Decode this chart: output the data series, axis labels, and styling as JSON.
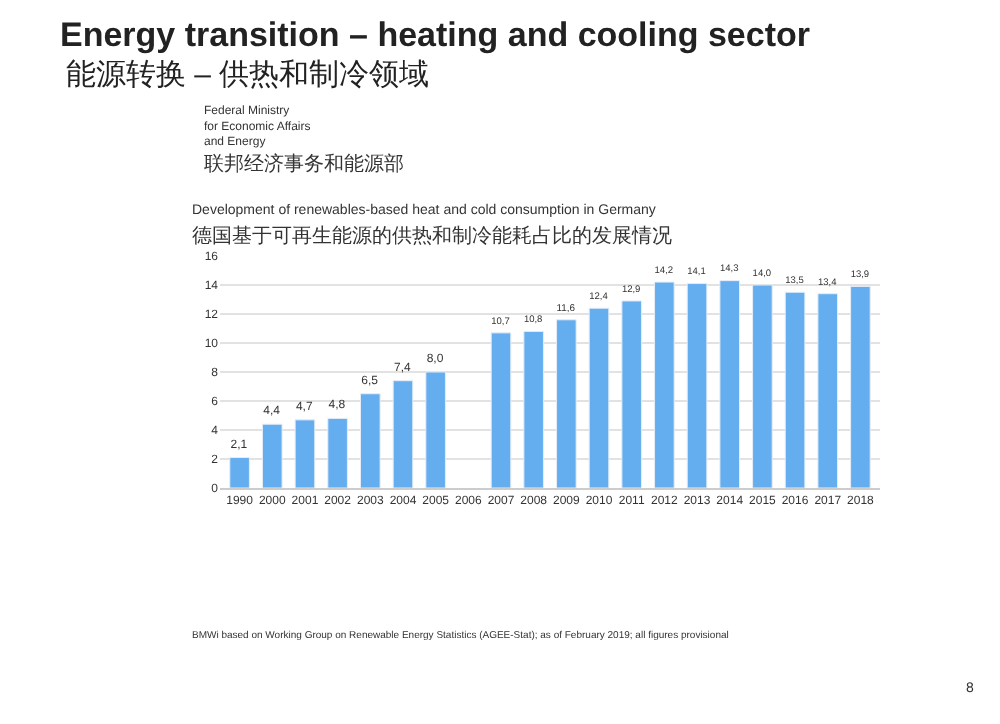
{
  "chart_data": {
    "type": "bar",
    "title": "Energy transition – heating and cooling sector",
    "subtitle": "能源转换 – 供热和制冷领域",
    "annotations": [
      "Federal Ministry\nfor Economic Affairs\nand Energy",
      "联邦经济事务和能源部",
      "Development of renewables-based heat and cold consumption in Germany",
      "德国基于可再生能源的供热和制冷能耗占比的发展情况",
      "BMWi based on Working Group on Renewable Energy Statistics (AGEE-Stat); as of February 2019; all figures provisional",
      "8"
    ],
    "categories": [
      "1990",
      "2000",
      "2001",
      "2002",
      "2003",
      "2004",
      "2005",
      "2006",
      "2007",
      "2008",
      "2009",
      "2010",
      "2011",
      "2012",
      "2013",
      "2014",
      "2015",
      "2016",
      "2017",
      "2018"
    ],
    "values": [
      2.1,
      4.4,
      4.7,
      4.8,
      6.5,
      7.4,
      8.0,
      null,
      10.7,
      10.8,
      11.6,
      12.4,
      12.9,
      14.2,
      14.1,
      14.3,
      14.0,
      13.5,
      13.4,
      13.9
    ],
    "value_labels": [
      "2,1",
      "4,4",
      "4,7",
      "4,8",
      "6,5",
      "7,4",
      "8,0",
      null,
      "10,7",
      "10,8",
      "11,6",
      "12,4",
      "12,9",
      "14,2",
      "14,1",
      "14,3",
      "14,0",
      "13,5",
      "13,4",
      "13,9"
    ],
    "color": "#64aef0",
    "ylim": [
      0,
      16
    ],
    "yticks": [
      0,
      2,
      4,
      6,
      8,
      10,
      12,
      14,
      16
    ],
    "grid": "y",
    "legend": false
  }
}
